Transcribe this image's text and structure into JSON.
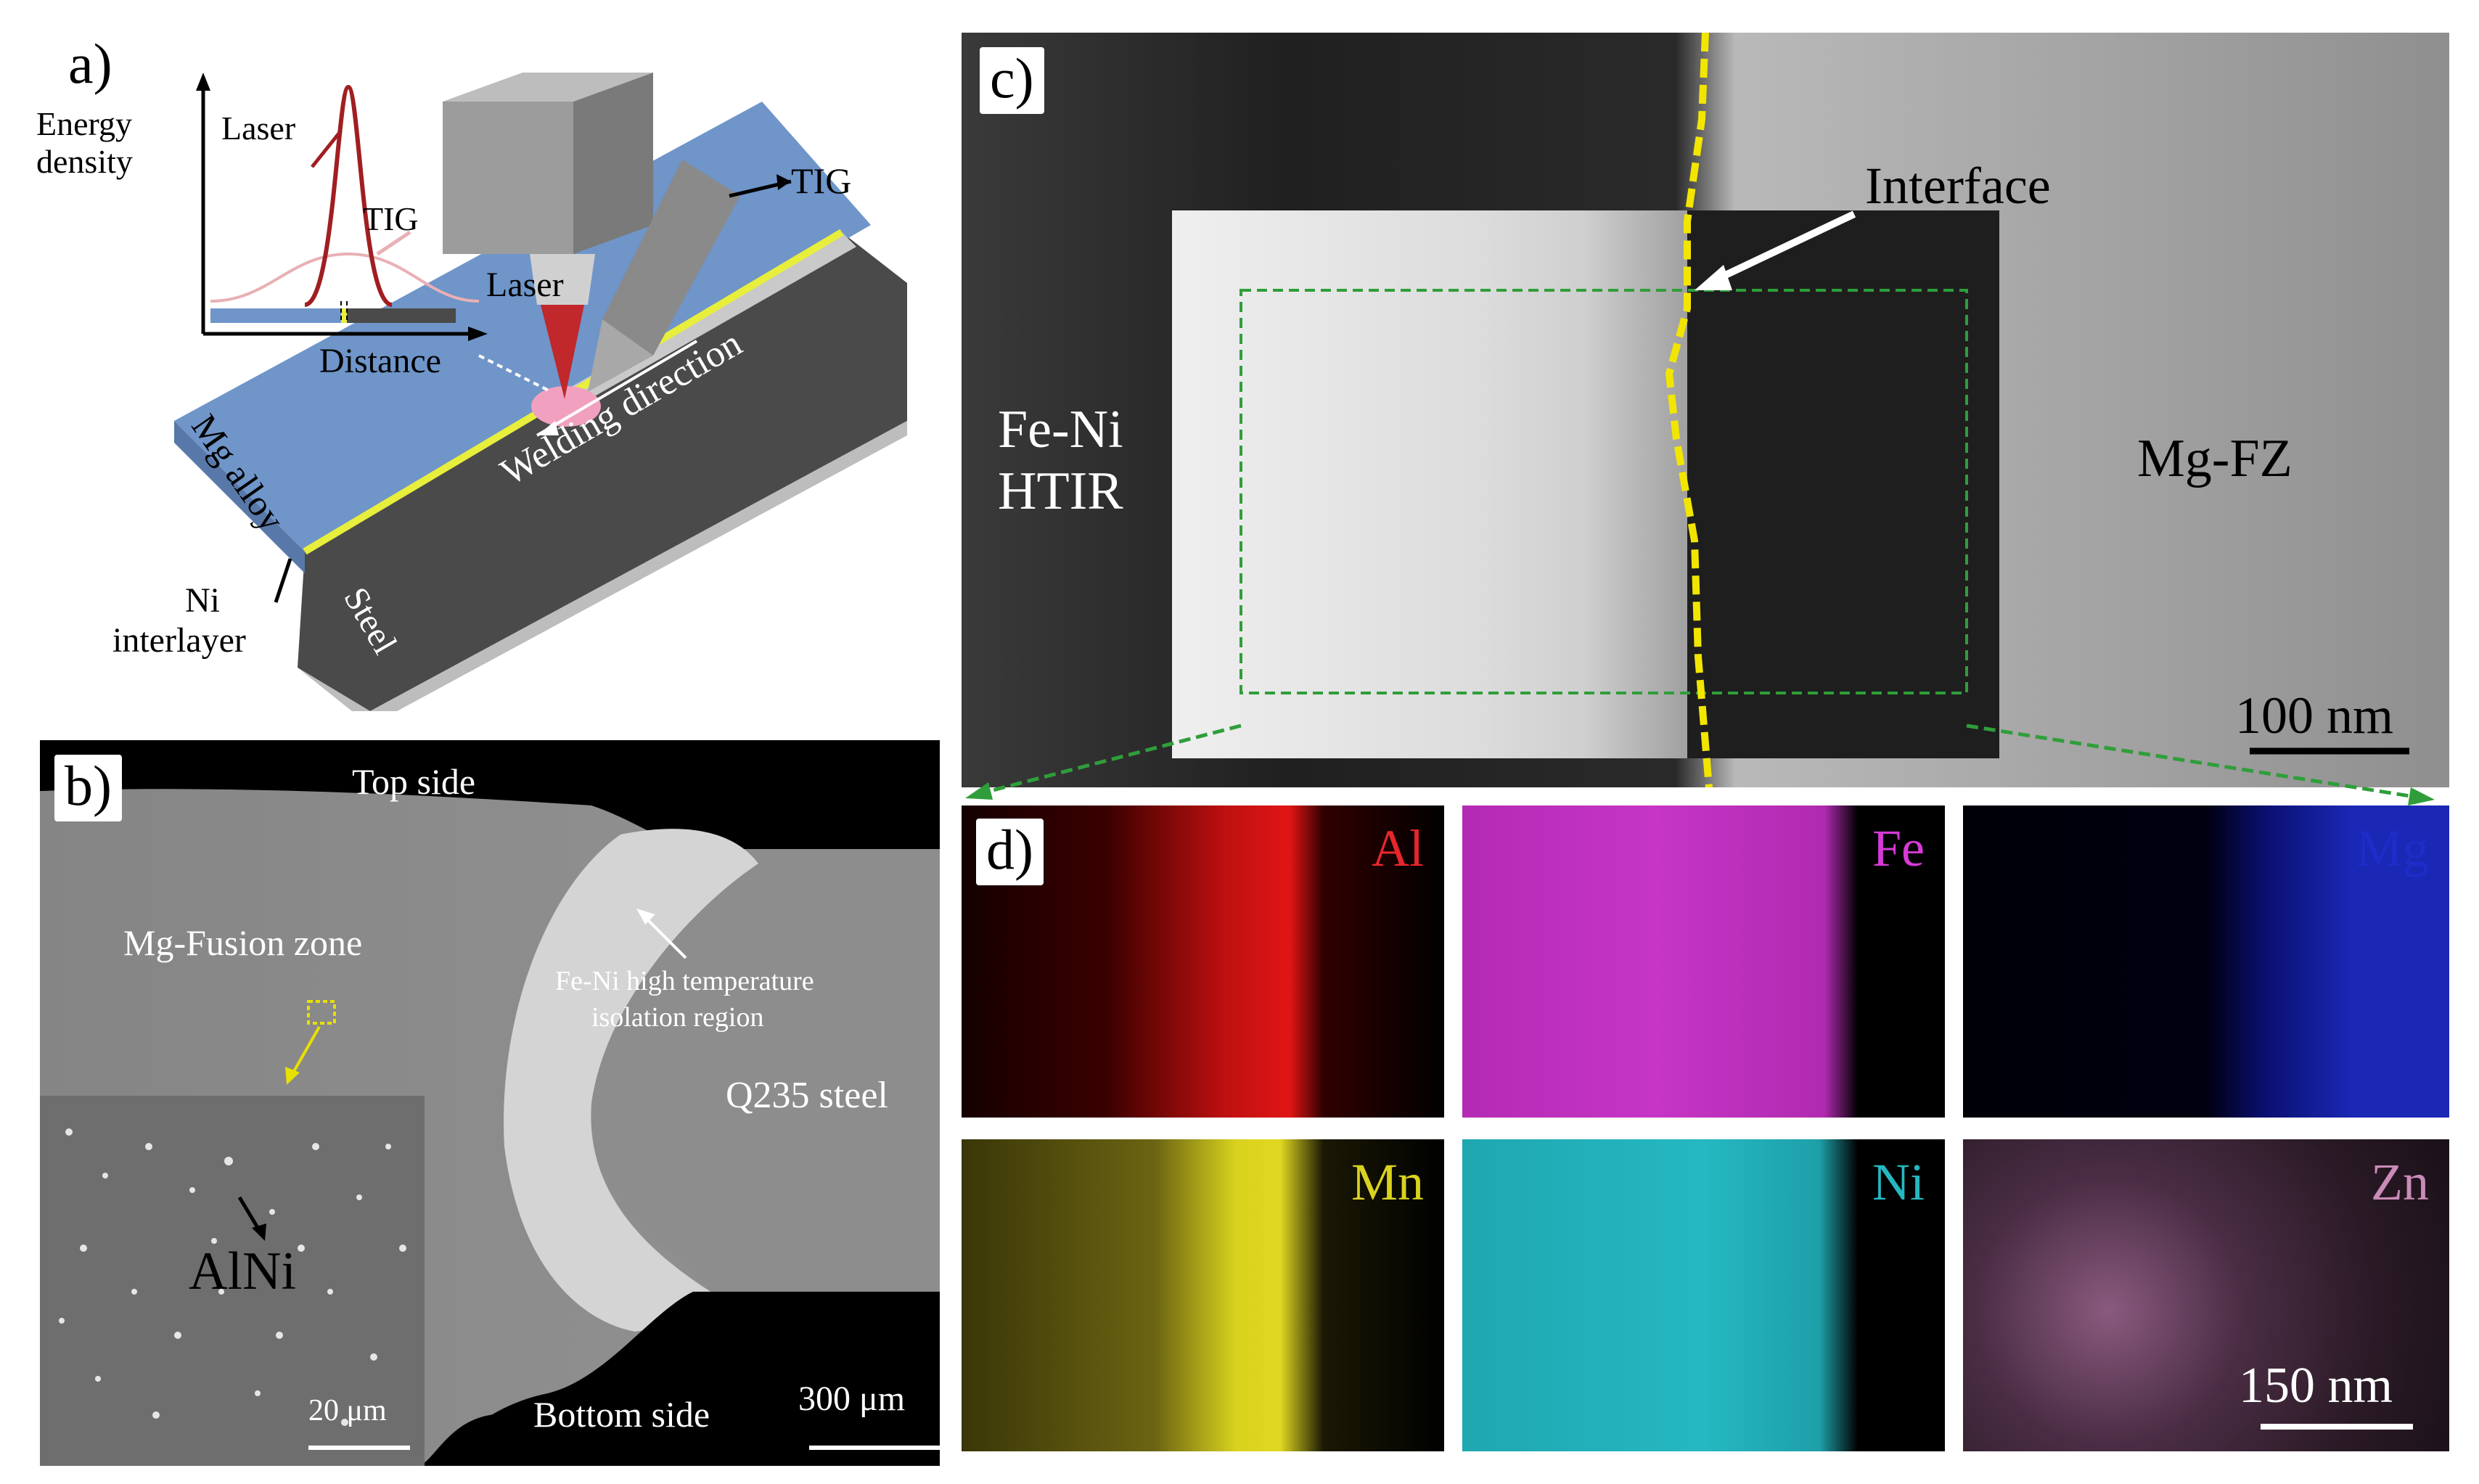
{
  "panel_a": {
    "tag": "a)",
    "y_axis": "Energy density",
    "x_axis": "Distance",
    "laser_curve": "Laser",
    "tig_curve": "TIG",
    "tig_torch": "TIG",
    "laser_head": "Laser",
    "welding_direction": "Welding direction",
    "mg_alloy": "Mg alloy",
    "steel": "Steel",
    "ni_interlayer_1": "Ni",
    "ni_interlayer_2": "interlayer",
    "colors": {
      "mg": "#6f95c9",
      "steel": "#4a4a4a",
      "ni": "#e8ee3c",
      "laser": "#c0282b"
    }
  },
  "panel_b": {
    "tag": "b)",
    "top_side": "Top side",
    "bottom_side": "Bottom side",
    "mg_fz": "Mg-Fusion zone",
    "fe_ni_1": "Fe-Ni high temperature",
    "fe_ni_2": "isolation region",
    "q235": "Q235 steel",
    "alni": "AlNi",
    "scale_inset": "20 μm",
    "scale_main": "300 μm"
  },
  "panel_c": {
    "tag": "c)",
    "interface": "Interface",
    "fe_ni_1": "Fe-Ni",
    "fe_ni_2": "HTIR",
    "mg_fz": "Mg-FZ",
    "scale": "100 nm"
  },
  "panel_d": {
    "tag": "d)",
    "scale": "150 nm",
    "maps": [
      {
        "element": "Al",
        "color": "#e8262a"
      },
      {
        "element": "Fe",
        "color": "#d63ad6"
      },
      {
        "element": "Mg",
        "color": "#1f2cc8"
      },
      {
        "element": "Mn",
        "color": "#d9d21e"
      },
      {
        "element": "Ni",
        "color": "#25b8c2"
      },
      {
        "element": "Zn",
        "color": "#c98bb7"
      }
    ]
  }
}
